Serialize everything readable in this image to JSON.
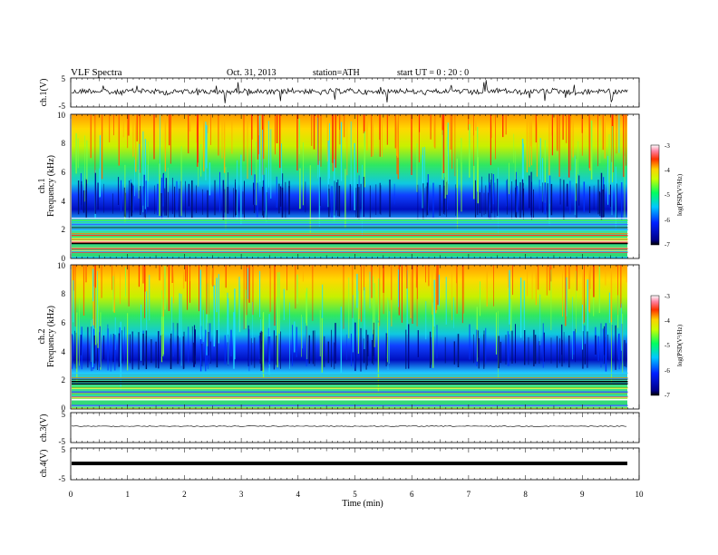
{
  "header": {
    "title": "VLF  Spectra",
    "date": "Oct. 31, 2013",
    "station": "station=ATH",
    "start": "start  UT  =   0  : 20 : 0"
  },
  "chart_data": [
    {
      "type": "line",
      "panel": "ch1-waveform",
      "ylabel": "ch.1(V)",
      "ylim": [
        -5,
        5
      ],
      "yticks": [
        "5",
        "-5"
      ],
      "xlim": [
        0,
        10
      ]
    },
    {
      "type": "heatmap",
      "panel": "ch1-spectrogram",
      "ylabel_top": "ch.1",
      "ylabel": "Frequency  (kHz)",
      "ylim": [
        0,
        10
      ],
      "yticks": [
        "0",
        "2",
        "4",
        "6",
        "8",
        "10"
      ],
      "xlim": [
        0,
        10
      ],
      "data_end_min": 9.8,
      "colorbar": {
        "label": "log(PSD(V²/Hz)",
        "range": [
          -7,
          -3
        ],
        "ticks": [
          "-3",
          "-4",
          "-5",
          "-6",
          "-7"
        ]
      }
    },
    {
      "type": "heatmap",
      "panel": "ch2-spectrogram",
      "ylabel_top": "ch.2",
      "ylabel": "Frequency  (kHz)",
      "ylim": [
        0,
        10
      ],
      "yticks": [
        "0",
        "2",
        "4",
        "6",
        "8",
        "10"
      ],
      "xlim": [
        0,
        10
      ],
      "data_end_min": 9.8,
      "colorbar": {
        "label": "log(PSD(V²/Hz)",
        "range": [
          -7,
          -3
        ],
        "ticks": [
          "-3",
          "-4",
          "-5",
          "-6",
          "-7"
        ]
      }
    },
    {
      "type": "line",
      "panel": "ch3-waveform",
      "ylabel": "ch.3(V)",
      "ylim": [
        -5,
        5
      ],
      "yticks": [
        "5",
        "-5"
      ],
      "xlim": [
        0,
        10
      ]
    },
    {
      "type": "line",
      "panel": "ch4-waveform",
      "ylabel": "ch.4(V)",
      "ylim": [
        -5,
        5
      ],
      "yticks": [
        "5",
        "-5"
      ],
      "xlim": [
        0,
        10
      ],
      "xlabel": "Time  (min)",
      "xticks": [
        "0",
        "1",
        "2",
        "3",
        "4",
        "5",
        "6",
        "7",
        "8",
        "9",
        "10"
      ]
    }
  ]
}
